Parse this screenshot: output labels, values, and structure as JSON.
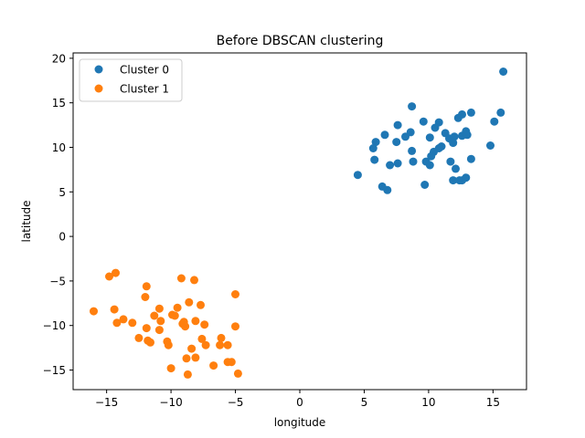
{
  "chart_data": {
    "type": "scatter",
    "title": "Before DBSCAN clustering",
    "xlabel": "longitude",
    "ylabel": "latitude",
    "xlim": [
      -17.6,
      17.6
    ],
    "ylim": [
      -17.2,
      20.6
    ],
    "xticks": [
      -15,
      -10,
      -5,
      0,
      5,
      10,
      15
    ],
    "yticks": [
      -15,
      -10,
      -5,
      0,
      5,
      10,
      15,
      20
    ],
    "xtick_labels": [
      "−15",
      "−10",
      "−5",
      "0",
      "5",
      "10",
      "15"
    ],
    "ytick_labels": [
      "−15",
      "−10",
      "−5",
      "0",
      "5",
      "10",
      "15",
      "20"
    ],
    "grid": false,
    "legend_position": "top-left",
    "series": [
      {
        "name": "Cluster 0",
        "color": "#1f77b4",
        "points": [
          [
            15.8,
            18.5
          ],
          [
            8.7,
            14.6
          ],
          [
            7.6,
            12.5
          ],
          [
            9.6,
            12.9
          ],
          [
            10.8,
            12.8
          ],
          [
            10.5,
            12.2
          ],
          [
            12.3,
            13.3
          ],
          [
            12.6,
            13.7
          ],
          [
            13.3,
            13.9
          ],
          [
            15.6,
            13.9
          ],
          [
            15.1,
            12.9
          ],
          [
            6.6,
            11.4
          ],
          [
            8.2,
            11.2
          ],
          [
            8.6,
            11.7
          ],
          [
            10.1,
            11.1
          ],
          [
            11.3,
            11.6
          ],
          [
            11.6,
            11.0
          ],
          [
            12.0,
            11.2
          ],
          [
            12.9,
            11.8
          ],
          [
            12.6,
            11.3
          ],
          [
            13.0,
            11.4
          ],
          [
            5.9,
            10.6
          ],
          [
            7.5,
            10.6
          ],
          [
            11.0,
            10.1
          ],
          [
            10.8,
            9.9
          ],
          [
            11.9,
            10.5
          ],
          [
            14.8,
            10.2
          ],
          [
            5.7,
            9.9
          ],
          [
            8.7,
            9.6
          ],
          [
            10.4,
            9.5
          ],
          [
            10.2,
            9.0
          ],
          [
            13.3,
            8.7
          ],
          [
            5.8,
            8.6
          ],
          [
            8.8,
            8.4
          ],
          [
            9.8,
            8.4
          ],
          [
            10.1,
            8.0
          ],
          [
            11.7,
            8.4
          ],
          [
            12.1,
            7.6
          ],
          [
            7.0,
            8.0
          ],
          [
            7.6,
            8.2
          ],
          [
            4.5,
            6.9
          ],
          [
            11.9,
            6.3
          ],
          [
            12.4,
            6.3
          ],
          [
            12.6,
            6.3
          ],
          [
            12.9,
            6.6
          ],
          [
            9.7,
            5.8
          ],
          [
            6.4,
            5.6
          ],
          [
            6.8,
            5.2
          ]
        ]
      },
      {
        "name": "Cluster 1",
        "color": "#ff7f0e",
        "points": [
          [
            -14.3,
            -4.1
          ],
          [
            -14.8,
            -4.5
          ],
          [
            -9.2,
            -4.7
          ],
          [
            -8.2,
            -4.9
          ],
          [
            -11.9,
            -5.6
          ],
          [
            -5.0,
            -6.5
          ],
          [
            -12.0,
            -6.8
          ],
          [
            -8.6,
            -7.4
          ],
          [
            -7.7,
            -7.7
          ],
          [
            -14.4,
            -8.2
          ],
          [
            -10.9,
            -8.1
          ],
          [
            -9.5,
            -8.0
          ],
          [
            -16.0,
            -8.4
          ],
          [
            -11.3,
            -8.9
          ],
          [
            -9.9,
            -8.8
          ],
          [
            -9.7,
            -8.9
          ],
          [
            -13.7,
            -9.3
          ],
          [
            -13.0,
            -9.7
          ],
          [
            -14.2,
            -9.7
          ],
          [
            -10.8,
            -9.5
          ],
          [
            -9.1,
            -9.8
          ],
          [
            -8.9,
            -10.1
          ],
          [
            -9.0,
            -9.6
          ],
          [
            -8.1,
            -9.5
          ],
          [
            -7.4,
            -9.9
          ],
          [
            -5.0,
            -10.1
          ],
          [
            -11.9,
            -10.3
          ],
          [
            -10.9,
            -10.5
          ],
          [
            -12.5,
            -11.4
          ],
          [
            -11.8,
            -11.7
          ],
          [
            -11.6,
            -11.9
          ],
          [
            -10.3,
            -11.8
          ],
          [
            -10.2,
            -12.2
          ],
          [
            -7.6,
            -11.5
          ],
          [
            -6.1,
            -11.4
          ],
          [
            -7.3,
            -12.2
          ],
          [
            -6.2,
            -12.2
          ],
          [
            -5.6,
            -12.2
          ],
          [
            -8.4,
            -12.6
          ],
          [
            -8.1,
            -13.6
          ],
          [
            -8.8,
            -13.7
          ],
          [
            -5.6,
            -14.1
          ],
          [
            -5.3,
            -14.1
          ],
          [
            -6.7,
            -14.5
          ],
          [
            -10.0,
            -14.8
          ],
          [
            -8.7,
            -15.5
          ],
          [
            -4.8,
            -15.4
          ]
        ]
      }
    ]
  }
}
